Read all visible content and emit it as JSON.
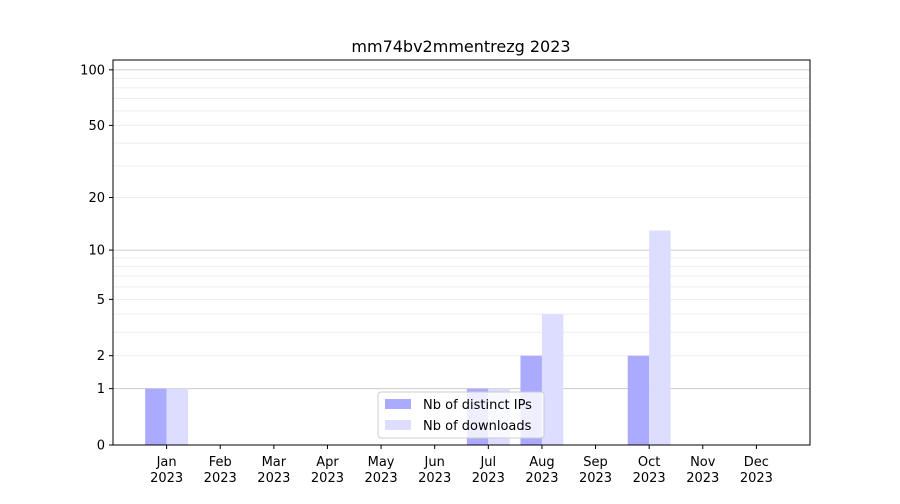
{
  "chart_data": {
    "type": "bar",
    "title": "mm74bv2mmentrezg 2023",
    "xlabel": "",
    "ylabel": "",
    "yscale": "log(1+y)",
    "ylim": [
      0,
      113
    ],
    "yticks": [
      0,
      1,
      2,
      5,
      10,
      20,
      50,
      100
    ],
    "grid": true,
    "legend_position": "lower-center",
    "categories": [
      {
        "month": "Jan",
        "year": "2023"
      },
      {
        "month": "Feb",
        "year": "2023"
      },
      {
        "month": "Mar",
        "year": "2023"
      },
      {
        "month": "Apr",
        "year": "2023"
      },
      {
        "month": "May",
        "year": "2023"
      },
      {
        "month": "Jun",
        "year": "2023"
      },
      {
        "month": "Jul",
        "year": "2023"
      },
      {
        "month": "Aug",
        "year": "2023"
      },
      {
        "month": "Sep",
        "year": "2023"
      },
      {
        "month": "Oct",
        "year": "2023"
      },
      {
        "month": "Nov",
        "year": "2023"
      },
      {
        "month": "Dec",
        "year": "2023"
      }
    ],
    "series": [
      {
        "name": "Nb of distinct IPs",
        "color": "#aaaaff",
        "values": [
          1,
          0,
          0,
          0,
          0,
          0,
          1,
          2,
          0,
          2,
          0,
          0
        ]
      },
      {
        "name": "Nb of downloads",
        "color": "#ddddff",
        "values": [
          1,
          0,
          0,
          0,
          0,
          0,
          1,
          4,
          0,
          13,
          0,
          0
        ]
      }
    ]
  }
}
